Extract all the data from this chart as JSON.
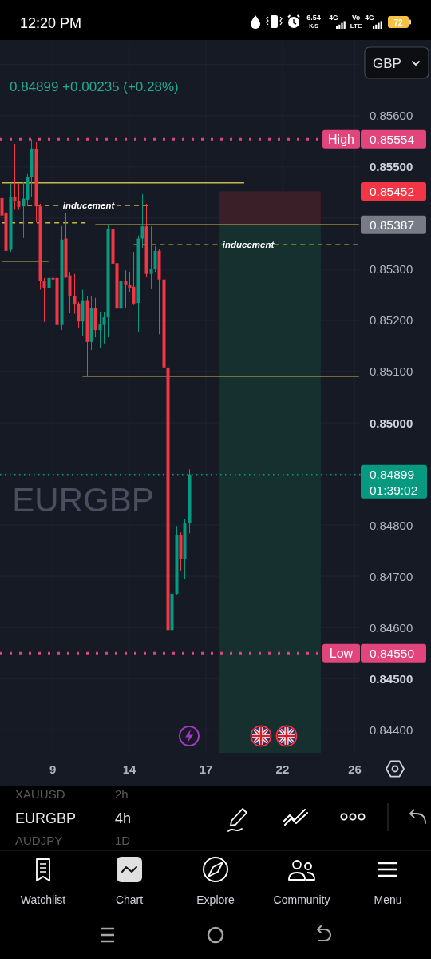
{
  "chart_data": {
    "type": "candlestick",
    "title": "EURGBP",
    "subtitle": "0.84899 +0.00235 (+0.28%)",
    "categories": [
      null,
      null,
      null,
      null,
      null,
      null,
      null,
      null,
      null,
      null,
      null,
      null,
      "9",
      null,
      null,
      null,
      null,
      null,
      null,
      null,
      null,
      null,
      null,
      null,
      null,
      null,
      null,
      null,
      null,
      null,
      "14",
      null,
      null,
      null,
      null,
      null,
      null,
      null,
      null,
      null,
      null,
      null,
      null,
      null,
      null,
      null,
      null,
      null,
      "17",
      null,
      null,
      null,
      null,
      null,
      null,
      null,
      null,
      null,
      null,
      null,
      null,
      null,
      null,
      null,
      null,
      null,
      "22",
      null,
      null,
      null,
      null,
      null,
      null,
      null,
      null,
      null,
      null,
      null,
      null,
      null,
      null,
      null,
      null,
      "26",
      null
    ],
    "ohlc": [
      [
        0.85439,
        0.85445,
        0.854,
        0.85405
      ],
      [
        0.85411,
        0.85416,
        0.85331,
        0.85336
      ],
      [
        0.85338,
        0.85467,
        0.85334,
        0.85441
      ],
      [
        0.85441,
        0.85545,
        0.85416,
        0.85433
      ],
      [
        0.85433,
        0.85467,
        0.85416,
        0.85422
      ],
      [
        0.85423,
        0.8547,
        0.85361,
        0.85438
      ],
      [
        0.85436,
        0.85486,
        0.85423,
        0.8548
      ],
      [
        0.8548,
        0.85554,
        0.85441,
        0.85536
      ],
      [
        0.85536,
        0.85548,
        0.85392,
        0.85423
      ],
      [
        0.85423,
        0.85428,
        0.8526,
        0.85277
      ],
      [
        0.85277,
        0.85283,
        0.85197,
        0.85264
      ],
      [
        0.85264,
        0.85308,
        0.85241,
        0.85283
      ],
      [
        0.85283,
        0.85308,
        0.85275,
        0.8528
      ],
      [
        0.85283,
        0.85288,
        0.85183,
        0.85191
      ],
      [
        0.85191,
        0.85384,
        0.85181,
        0.85358
      ],
      [
        0.8536,
        0.8541,
        0.85283,
        0.85284
      ],
      [
        0.85288,
        0.85295,
        0.85214,
        0.85247
      ],
      [
        0.85248,
        0.85291,
        0.85213,
        0.85231
      ],
      [
        0.85233,
        0.85236,
        0.85186,
        0.85198
      ],
      [
        0.85198,
        0.8526,
        0.8517,
        0.85238
      ],
      [
        0.85238,
        0.85248,
        0.85091,
        0.85158
      ],
      [
        0.85158,
        0.85248,
        0.85142,
        0.85225
      ],
      [
        0.85225,
        0.85244,
        0.85167,
        0.85181
      ],
      [
        0.85181,
        0.85217,
        0.85147,
        0.85192
      ],
      [
        0.85191,
        0.85217,
        0.85155,
        0.85206
      ],
      [
        0.85206,
        0.85386,
        0.85167,
        0.85378
      ],
      [
        0.85378,
        0.8541,
        0.85298,
        0.85311
      ],
      [
        0.85312,
        0.85314,
        0.85183,
        0.85223
      ],
      [
        0.85223,
        0.8528,
        0.85214,
        0.85277
      ],
      [
        0.85277,
        0.85298,
        0.85225,
        0.85269
      ],
      [
        0.85269,
        0.85295,
        0.85256,
        0.85264
      ],
      [
        0.85266,
        0.85334,
        0.8523,
        0.85233
      ],
      [
        0.85234,
        0.85366,
        0.85178,
        0.8536
      ],
      [
        0.8536,
        0.85447,
        0.85342,
        0.85384
      ],
      [
        0.85384,
        0.85428,
        0.85284,
        0.85291
      ],
      [
        0.85291,
        0.85384,
        0.85261,
        0.853
      ],
      [
        0.853,
        0.85345,
        0.85295,
        0.85336
      ],
      [
        0.85336,
        0.85339,
        0.85173,
        0.8528
      ],
      [
        0.8528,
        0.85295,
        0.85069,
        0.85108
      ],
      [
        0.85108,
        0.85125,
        0.84572,
        0.84595
      ],
      [
        0.84595,
        0.84756,
        0.8455,
        0.84666
      ],
      [
        0.84666,
        0.84798,
        0.84664,
        0.84781
      ],
      [
        0.84781,
        0.84786,
        0.8471,
        0.84733
      ],
      [
        0.84733,
        0.84811,
        0.84694,
        0.84803
      ],
      [
        0.84803,
        0.84909,
        0.84784,
        0.84899
      ],
      null,
      null,
      null,
      null,
      null,
      null,
      null,
      null,
      null,
      null,
      null,
      null,
      null,
      null,
      null,
      null,
      null,
      null,
      null,
      null,
      null,
      null,
      null,
      null,
      null,
      null,
      null,
      null,
      null,
      null,
      null,
      null,
      null,
      null,
      null,
      null,
      null,
      null,
      null,
      null
    ],
    "colors": [
      "#f23645",
      "#f23645",
      "#089981",
      "#f23645",
      "#f23645",
      "#089981",
      "#089981",
      "#089981",
      "#f23645",
      "#f23645",
      "#f23645",
      "#089981",
      "#f23645",
      "#f23645",
      "#089981",
      "#f23645",
      "#f23645",
      "#f23645",
      "#f23645",
      "#089981",
      "#f23645",
      "#089981",
      "#f23645",
      "#089981",
      "#089981",
      "#089981",
      "#f23645",
      "#f23645",
      "#089981",
      "#f23645",
      "#f23645",
      "#f23645",
      "#089981",
      "#089981",
      "#f23645",
      "#089981",
      "#089981",
      "#f23645",
      "#f23645",
      "#f23645",
      "#089981",
      "#089981",
      "#f23645",
      "#089981",
      "#089981",
      null,
      null,
      null,
      null,
      null,
      null,
      null,
      null,
      null,
      null,
      null,
      null,
      null,
      null,
      null,
      null,
      null,
      null,
      null,
      null,
      null,
      null,
      null,
      null,
      null,
      null,
      null,
      null,
      null,
      null,
      null,
      null,
      null,
      null,
      null,
      null,
      null,
      null,
      null,
      null
    ],
    "series": [
      {
        "type": "area",
        "color": "#3a1e28",
        "values": [
          null,
          null,
          null,
          null,
          null,
          null,
          null,
          null,
          null,
          null,
          null,
          null,
          null,
          null,
          null,
          null,
          null,
          null,
          null,
          null,
          null,
          null,
          null,
          null,
          null,
          null,
          null,
          null,
          null,
          null,
          null,
          null,
          null,
          null,
          null,
          null,
          null,
          null,
          null,
          null,
          null,
          null,
          null,
          null,
          null,
          null,
          null,
          null,
          null,
          null,
          null,
          0.85452,
          0.85452,
          0.85452,
          0.85452,
          0.85452,
          0.85452,
          0.85452,
          0.85452,
          0.85452,
          0.85452,
          0.85452,
          0.85452,
          0.85452,
          0.85452,
          0.85452,
          0.85452,
          0.85452,
          0.85452,
          0.85452,
          0.85452,
          0.85452,
          0.85452,
          0.85452,
          0.85452,
          0.85452,
          null,
          null,
          null,
          null,
          null,
          null,
          null,
          null,
          null
        ]
      },
      {
        "type": "area",
        "color": "#15302f",
        "values": [
          null,
          null,
          null,
          null,
          null,
          null,
          null,
          null,
          null,
          null,
          null,
          null,
          null,
          null,
          null,
          null,
          null,
          null,
          null,
          null,
          null,
          null,
          null,
          null,
          null,
          null,
          null,
          null,
          null,
          null,
          null,
          null,
          null,
          null,
          null,
          null,
          null,
          null,
          null,
          null,
          null,
          null,
          null,
          null,
          null,
          null,
          null,
          null,
          null,
          null,
          null,
          0.85387,
          0.85387,
          0.85387,
          0.85387,
          0.85387,
          0.85387,
          0.85387,
          0.85387,
          0.85387,
          0.85387,
          0.85387,
          0.85387,
          0.85387,
          0.85387,
          0.85387,
          0.85387,
          0.85387,
          0.85387,
          0.85387,
          0.85387,
          0.85387,
          0.85387,
          0.85387,
          0.85387,
          0.85387,
          null,
          null,
          null,
          null,
          null,
          null,
          null,
          null,
          null
        ]
      },
      {
        "type": "line",
        "color": "#c8b84c",
        "values": [
          0.85469,
          0.85469,
          0.85469,
          0.85469,
          0.85469,
          0.85469,
          0.85469,
          0.85469,
          0.85469,
          0.85469,
          0.85469,
          0.85469,
          0.85469,
          0.85469,
          0.85469,
          0.85469,
          0.85469,
          0.85469,
          0.85469,
          0.85469,
          0.85469,
          0.85469,
          0.85469,
          0.85469,
          0.85469,
          0.85469,
          0.85469,
          0.85469,
          0.85469,
          0.85469,
          0.85469,
          0.85469,
          0.85469,
          0.85469,
          0.85469,
          0.85469,
          0.85469,
          0.85469,
          0.85469,
          0.85469,
          0.85469,
          0.85469,
          0.85469,
          0.85469,
          0.85469,
          0.85469,
          0.85469,
          0.85469,
          0.85469,
          0.85469,
          0.85469,
          0.85469,
          0.85469,
          0.85469,
          0.85469,
          0.85469,
          0.85469,
          0.85469,
          null,
          null,
          null,
          null,
          null,
          null,
          null,
          null,
          null,
          null,
          null,
          null,
          null,
          null,
          null,
          null,
          null,
          null,
          null,
          null,
          null,
          null,
          null,
          null,
          null,
          null,
          null
        ]
      },
      {
        "type": "line",
        "color": "#c8b84c",
        "line_style": "dashed",
        "values": [
          null,
          null,
          null,
          null,
          null,
          null,
          0.85425,
          0.85425,
          0.85425,
          0.85425,
          0.85425,
          0.85425,
          0.85425,
          0.85425,
          0.85425,
          null,
          null,
          null,
          null,
          null,
          null,
          null,
          null,
          null,
          null,
          null,
          null,
          0.85425,
          0.85425,
          0.85425,
          0.85425,
          0.85425,
          0.85425,
          0.85425,
          0.85425,
          0.85425,
          null,
          null,
          null,
          null,
          null,
          null,
          null,
          null,
          null,
          null,
          null,
          null,
          null,
          null,
          null,
          null,
          null,
          null,
          null,
          null,
          null,
          null,
          null,
          null,
          null,
          null,
          null,
          null,
          null,
          null,
          null,
          null,
          null,
          null,
          null,
          null,
          null,
          null,
          null,
          null,
          null,
          null,
          null,
          null,
          null,
          null,
          null,
          null,
          null
        ]
      },
      {
        "type": "line",
        "color": "#c8b84c",
        "line_style": "dashed",
        "values": [
          0.85391,
          0.85391,
          0.85391,
          0.85391,
          0.85391,
          0.85391,
          0.85391,
          0.85391,
          0.85391,
          0.85391,
          0.85391,
          0.85391,
          0.85391,
          0.85391,
          0.85391,
          0.85391,
          0.85391,
          0.85391,
          0.85391,
          0.85391,
          0.85391,
          null,
          null,
          null,
          null,
          null,
          null,
          null,
          null,
          null,
          null,
          null,
          null,
          null,
          null,
          null,
          null,
          null,
          null,
          null,
          null,
          null,
          null,
          null,
          null,
          null,
          null,
          null,
          null,
          null,
          null,
          null,
          null,
          null,
          null,
          null,
          null,
          null,
          null,
          null,
          null,
          null,
          null,
          null,
          null,
          null,
          null,
          null,
          null,
          null,
          null,
          null,
          null,
          null,
          null,
          null,
          null,
          null,
          null,
          null,
          null,
          null,
          null,
          null,
          null
        ]
      },
      {
        "type": "line",
        "color": "#c8b84c",
        "values": [
          null,
          null,
          null,
          null,
          null,
          null,
          null,
          null,
          null,
          null,
          null,
          null,
          null,
          null,
          null,
          null,
          null,
          null,
          null,
          null,
          null,
          null,
          0.85387,
          0.85387,
          0.85387,
          0.85387,
          0.85387,
          0.85387,
          0.85387,
          0.85387,
          0.85387,
          0.85387,
          0.85387,
          0.85387,
          0.85387,
          0.85387,
          0.85387,
          0.85387,
          0.85387,
          0.85387,
          0.85387,
          0.85387,
          0.85387,
          0.85387,
          0.85387,
          0.85387,
          0.85387,
          0.85387,
          0.85387,
          0.85387,
          0.85387,
          0.85387,
          0.85387,
          0.85387,
          0.85387,
          0.85387,
          0.85387,
          0.85387,
          0.85387,
          0.85387,
          0.85387,
          0.85387,
          0.85387,
          0.85387,
          0.85387,
          0.85387,
          0.85387,
          0.85387,
          0.85387,
          0.85387,
          0.85387,
          0.85387,
          0.85387,
          0.85387,
          0.85387,
          0.85387,
          0.85387,
          0.85387,
          0.85387,
          0.85387,
          0.85387,
          0.85387,
          0.85387,
          0.85387,
          0.85387
        ],
        "value_labels": [
          null,
          null,
          null,
          null,
          null,
          null,
          null,
          null,
          null,
          null,
          null,
          null,
          null,
          null,
          null,
          null,
          null,
          null,
          null,
          null,
          null,
          null,
          null,
          null,
          null,
          null,
          null,
          null,
          null,
          null,
          null,
          null,
          null,
          null,
          null,
          null,
          null,
          null,
          null,
          null,
          null,
          null,
          null,
          null,
          null,
          null,
          null,
          null,
          null,
          null,
          null,
          null,
          null,
          null,
          null,
          null,
          null,
          null,
          null,
          null,
          null,
          null,
          null,
          null,
          null,
          null,
          null,
          null,
          null,
          null,
          null,
          null,
          null,
          null,
          null,
          null,
          null,
          null,
          null,
          null,
          null,
          null,
          null,
          null,
          "0.85387"
        ]
      },
      {
        "type": "line",
        "color": "#c8b84c",
        "line_style": "dashed",
        "values": [
          null,
          null,
          null,
          null,
          null,
          null,
          null,
          null,
          null,
          null,
          null,
          null,
          null,
          null,
          null,
          null,
          null,
          null,
          null,
          null,
          null,
          null,
          null,
          null,
          null,
          null,
          null,
          null,
          null,
          null,
          null,
          0.85348,
          0.85348,
          0.85348,
          0.85348,
          0.85348,
          0.85348,
          0.85348,
          0.85348,
          0.85348,
          0.85348,
          0.85348,
          0.85348,
          0.85348,
          0.85348,
          0.85348,
          0.85348,
          0.85348,
          0.85348,
          0.85348,
          0.85348,
          0.85348,
          0.85348,
          null,
          null,
          null,
          null,
          null,
          null,
          null,
          null,
          null,
          null,
          null,
          0.85348,
          0.85348,
          0.85348,
          0.85348,
          0.85348,
          0.85348,
          0.85348,
          0.85348,
          0.85348,
          0.85348,
          0.85348,
          0.85348,
          0.85348,
          0.85348,
          0.85348,
          0.85348,
          0.85348,
          0.85348,
          0.85348,
          0.85348,
          0.85348
        ]
      },
      {
        "type": "line",
        "color": "#c8b84c",
        "values": [
          0.85316,
          0.85316,
          0.85316,
          0.85316,
          0.85316,
          0.85316,
          0.85316,
          0.85316,
          0.85316,
          0.85316,
          0.85316,
          0.85316,
          null,
          null,
          null,
          null,
          null,
          null,
          null,
          null,
          null,
          null,
          null,
          null,
          null,
          null,
          null,
          null,
          null,
          null,
          null,
          null,
          null,
          null,
          null,
          null,
          null,
          null,
          null,
          null,
          null,
          null,
          null,
          null,
          null,
          null,
          null,
          null,
          null,
          null,
          null,
          null,
          null,
          null,
          null,
          null,
          null,
          null,
          null,
          null,
          null,
          null,
          null,
          null,
          null,
          null,
          null,
          null,
          null,
          null,
          null,
          null,
          null,
          null,
          null,
          null,
          null,
          null,
          null,
          null,
          null,
          null,
          null,
          null,
          null
        ]
      },
      {
        "type": "line",
        "color": "#c8b84c",
        "values": [
          null,
          null,
          null,
          null,
          null,
          null,
          null,
          null,
          null,
          null,
          null,
          null,
          null,
          null,
          null,
          null,
          null,
          null,
          null,
          0.85091,
          0.85091,
          0.85091,
          0.85091,
          0.85091,
          0.85091,
          0.85091,
          0.85091,
          0.85091,
          0.85091,
          0.85091,
          0.85091,
          0.85091,
          0.85091,
          0.85091,
          0.85091,
          0.85091,
          0.85091,
          0.85091,
          0.85091,
          0.85091,
          0.85091,
          0.85091,
          0.85091,
          0.85091,
          0.85091,
          0.85091,
          0.85091,
          0.85091,
          0.85091,
          0.85091,
          0.85091,
          0.85091,
          0.85091,
          0.85091,
          0.85091,
          0.85091,
          0.85091,
          0.85091,
          0.85091,
          0.85091,
          0.85091,
          0.85091,
          0.85091,
          0.85091,
          0.85091,
          0.85091,
          0.85091,
          0.85091,
          0.85091,
          0.85091,
          0.85091,
          0.85091,
          0.85091,
          0.85091,
          0.85091,
          0.85091,
          0.85091,
          0.85091,
          0.85091,
          0.85091,
          0.85091,
          0.85091,
          0.85091,
          0.85091,
          0.85091
        ]
      }
    ],
    "ylim": [
      0.84355,
      0.85745
    ],
    "yticks": [
      {
        "value": 0.844,
        "label": "0.84400"
      },
      {
        "value": 0.845,
        "label": "0.84500"
      },
      {
        "value": 0.846,
        "label": "0.84600"
      },
      {
        "value": 0.847,
        "label": "0.84700"
      },
      {
        "value": 0.848,
        "label": "0.84800"
      },
      {
        "value": 0.849,
        "label": null
      },
      {
        "value": 0.85,
        "label": "0.85000"
      },
      {
        "value": 0.851,
        "label": "0.85100"
      },
      {
        "value": 0.852,
        "label": "0.85200"
      },
      {
        "value": 0.853,
        "label": "0.85300"
      },
      {
        "value": 0.854,
        "label": null
      },
      {
        "value": 0.855,
        "label": "0.85500"
      },
      {
        "value": 0.856,
        "label": "0.85600"
      },
      {
        "value": 0.857,
        "label": null
      }
    ],
    "grid": true,
    "ref_lines": [
      {
        "axis": "y",
        "value": 0.85554,
        "label": "High",
        "color": "#e2457c",
        "line_style": "dotted"
      },
      {
        "axis": "y",
        "value": 0.8455,
        "label": "Low",
        "color": "#e2457c",
        "line_style": "dotted"
      },
      {
        "axis": "y",
        "value": 0.84899,
        "label": "01:39:02",
        "color": "#089981",
        "line_style": "dotted"
      }
    ],
    "annotations": [
      "0.85554",
      "0.84550",
      "0.84899",
      "0.85452",
      "inducement",
      "inducement",
      "GBP",
      "12:20 PM",
      "6.54",
      "K/S",
      "4G",
      "Vo",
      "LTE",
      "4G",
      "72",
      "XAUUSD",
      "2h",
      "EURGBP",
      "4h",
      "AUDJPY",
      "1D",
      "Watchlist",
      "Chart",
      "Explore",
      "Community",
      "Menu"
    ]
  }
}
